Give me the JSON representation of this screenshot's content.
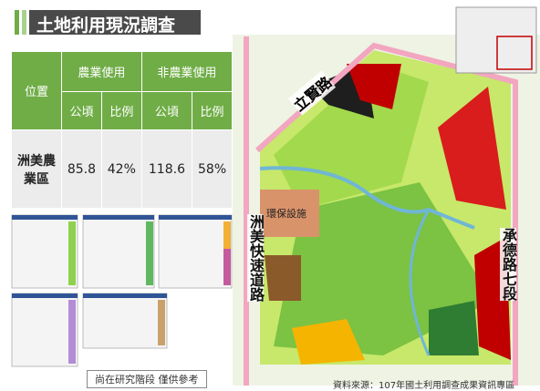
{
  "title": "土地利用現況調查",
  "table": {
    "header": [
      "位置",
      "農業使用",
      "非農業使用"
    ],
    "subheader": [
      "公頃",
      "比例",
      "公頃",
      "比例"
    ],
    "rows": [
      [
        "洲美農業區",
        85.8,
        "42%",
        118.6,
        "58%"
      ]
    ]
  },
  "map_labels": {
    "road_north": "立賢路",
    "facility": "環保設施",
    "road_west": "洲美快速道路",
    "road_east": "承德路七段"
  },
  "note": "尚在研究階段 僅供參考",
  "source": "資料來源：107年國土利用調查成果資訊專區"
}
